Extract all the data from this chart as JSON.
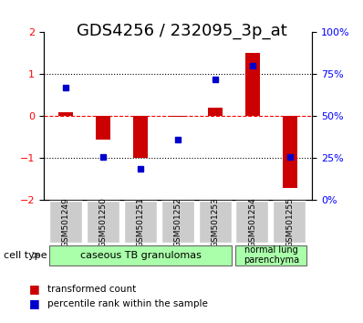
{
  "title": "GDS4256 / 232095_3p_at",
  "samples": [
    "GSM501249",
    "GSM501250",
    "GSM501251",
    "GSM501252",
    "GSM501253",
    "GSM501254",
    "GSM501255"
  ],
  "red_values": [
    0.1,
    -0.55,
    -1.0,
    -0.02,
    0.2,
    1.5,
    -1.7
  ],
  "blue_values_pct": [
    67,
    26,
    19,
    36,
    72,
    80,
    26
  ],
  "ylim_left": [
    -2,
    2
  ],
  "ylim_right": [
    0,
    100
  ],
  "yticks_left": [
    -2,
    -1,
    0,
    1,
    2
  ],
  "yticks_right": [
    0,
    25,
    50,
    75,
    100
  ],
  "ytick_labels_right": [
    "0%",
    "25%",
    "50%",
    "75%",
    "100%"
  ],
  "hlines": [
    -1,
    0,
    1
  ],
  "hline_colors": [
    "black",
    "red",
    "black"
  ],
  "hline_styles": [
    "dotted",
    "dashed",
    "dotted"
  ],
  "bar_width": 0.4,
  "red_color": "#cc0000",
  "blue_color": "#0000cc",
  "group1_samples": [
    "GSM501249",
    "GSM501250",
    "GSM501251",
    "GSM501252",
    "GSM501253"
  ],
  "group1_label": "caseous TB granulomas",
  "group1_color": "#aaffaa",
  "group2_samples": [
    "GSM501254",
    "GSM501255"
  ],
  "group2_label": "normal lung\nparenchyma",
  "group2_color": "#aaffaa",
  "legend_red": "transformed count",
  "legend_blue": "percentile rank within the sample",
  "cell_type_label": "cell type",
  "bg_color": "#f0f0f0",
  "title_fontsize": 13,
  "tick_fontsize": 8,
  "label_fontsize": 9
}
